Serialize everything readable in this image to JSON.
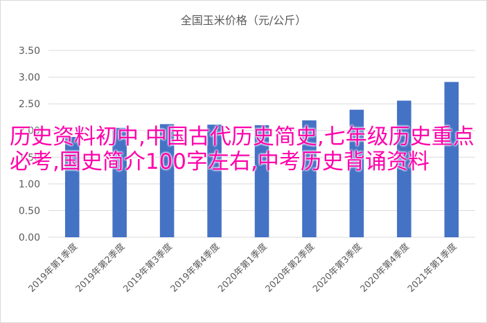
{
  "chart_data": {
    "type": "bar",
    "title": "全国玉米价格（元/公斤）",
    "xlabel": "",
    "ylabel": "",
    "ylim": [
      0,
      3.5
    ],
    "yticks": [
      "0.00",
      "0.50",
      "1.00",
      "1.50",
      "2.00",
      "2.50",
      "3.00",
      "3.50"
    ],
    "grid": true,
    "categories": [
      "2019年第1季度",
      "2019年第2季度",
      "2019年第3季度",
      "2019年第4季度",
      "2020年第1季度",
      "2020年第2季度",
      "2020年第3季度",
      "2020年第4季度",
      "2021年第1季度"
    ],
    "values": [
      1.88,
      2.05,
      2.12,
      2.11,
      2.1,
      2.19,
      2.39,
      2.56,
      2.91
    ],
    "bar_color": "#4472c4"
  },
  "overlay": {
    "text": "历史资料初中,中国古代历史简史,七年级历史重点必考,国史简介100字左右,中考历史背诵资料",
    "color": "#ff00aa"
  }
}
